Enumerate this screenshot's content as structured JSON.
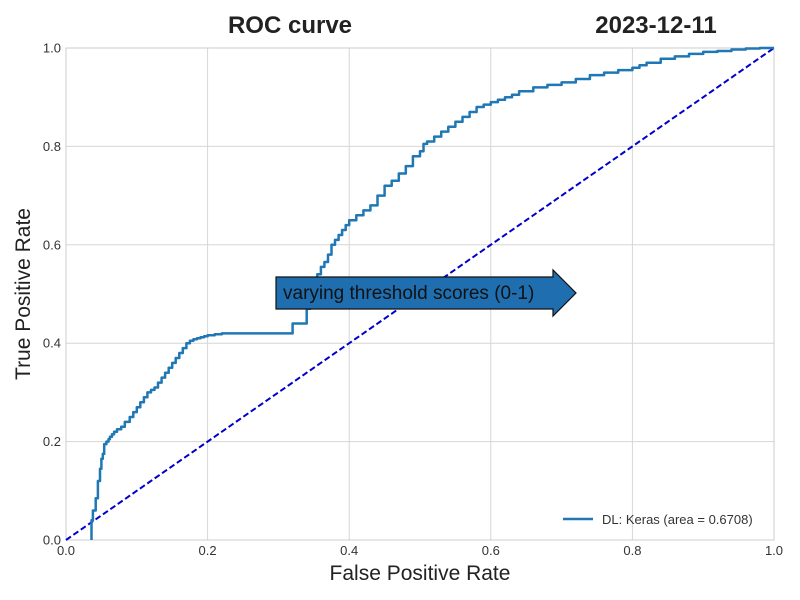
{
  "chart_data": {
    "type": "line",
    "title": "ROC curve",
    "date": "2023-12-11",
    "xlabel": "False Positive Rate",
    "ylabel": "True Positive Rate",
    "xlim": [
      0.0,
      1.0
    ],
    "ylim": [
      0.0,
      1.0
    ],
    "xticks": [
      "0.0",
      "0.2",
      "0.4",
      "0.6",
      "0.8",
      "1.0"
    ],
    "yticks": [
      "0.0",
      "0.2",
      "0.4",
      "0.6",
      "0.8",
      "1.0"
    ],
    "grid": true,
    "legend_position": "lower-right",
    "annotation": "varying threshold scores (0-1)",
    "colors": {
      "roc": "#1f77b4",
      "chance": "#0000cd",
      "arrow": "#1f6fb0",
      "grid": "#d6d6d6",
      "frame": "#cccccc"
    },
    "series": [
      {
        "name": "DL: Keras (area = 0.6708)",
        "style": "solid",
        "x": [
          0.036,
          0.036,
          0.038,
          0.042,
          0.045,
          0.048,
          0.05,
          0.052,
          0.054,
          0.057,
          0.06,
          0.062,
          0.065,
          0.068,
          0.072,
          0.078,
          0.083,
          0.09,
          0.095,
          0.1,
          0.105,
          0.11,
          0.115,
          0.12,
          0.125,
          0.13,
          0.135,
          0.14,
          0.145,
          0.15,
          0.155,
          0.16,
          0.165,
          0.17,
          0.175,
          0.18,
          0.185,
          0.19,
          0.195,
          0.2,
          0.21,
          0.22,
          0.24,
          0.26,
          0.28,
          0.3,
          0.32,
          0.34,
          0.345,
          0.35,
          0.355,
          0.36,
          0.365,
          0.37,
          0.375,
          0.38,
          0.385,
          0.39,
          0.395,
          0.4,
          0.41,
          0.42,
          0.43,
          0.44,
          0.45,
          0.46,
          0.47,
          0.48,
          0.49,
          0.5,
          0.505,
          0.51,
          0.52,
          0.53,
          0.54,
          0.55,
          0.56,
          0.57,
          0.58,
          0.59,
          0.6,
          0.61,
          0.62,
          0.63,
          0.64,
          0.66,
          0.68,
          0.7,
          0.72,
          0.74,
          0.76,
          0.78,
          0.8,
          0.81,
          0.82,
          0.84,
          0.86,
          0.88,
          0.9,
          0.92,
          0.94,
          0.96,
          0.98,
          1.0
        ],
        "y": [
          0.0,
          0.015,
          0.04,
          0.06,
          0.085,
          0.12,
          0.145,
          0.165,
          0.175,
          0.195,
          0.2,
          0.205,
          0.21,
          0.215,
          0.22,
          0.225,
          0.23,
          0.24,
          0.25,
          0.26,
          0.27,
          0.28,
          0.29,
          0.3,
          0.305,
          0.31,
          0.32,
          0.33,
          0.34,
          0.35,
          0.36,
          0.37,
          0.38,
          0.39,
          0.4,
          0.405,
          0.408,
          0.41,
          0.412,
          0.414,
          0.416,
          0.418,
          0.42,
          0.42,
          0.42,
          0.42,
          0.42,
          0.44,
          0.47,
          0.5,
          0.52,
          0.54,
          0.555,
          0.565,
          0.58,
          0.6,
          0.61,
          0.62,
          0.63,
          0.64,
          0.65,
          0.66,
          0.67,
          0.68,
          0.7,
          0.72,
          0.73,
          0.745,
          0.76,
          0.78,
          0.79,
          0.805,
          0.81,
          0.82,
          0.83,
          0.84,
          0.85,
          0.86,
          0.87,
          0.88,
          0.885,
          0.89,
          0.895,
          0.9,
          0.905,
          0.912,
          0.92,
          0.925,
          0.93,
          0.937,
          0.945,
          0.95,
          0.955,
          0.96,
          0.965,
          0.97,
          0.978,
          0.983,
          0.988,
          0.992,
          0.994,
          0.997,
          0.999,
          1.0
        ]
      },
      {
        "name": "",
        "style": "dashed",
        "x": [
          0.0,
          1.0
        ],
        "y": [
          0.0,
          1.0
        ]
      }
    ]
  }
}
